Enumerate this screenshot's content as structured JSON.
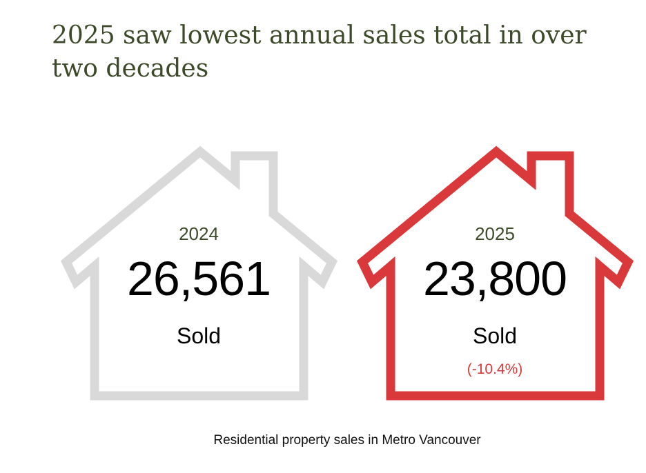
{
  "chart_data": {
    "type": "table",
    "title": "2025 saw lowest annual sales total in over two decades",
    "caption": "Residential property sales in Metro Vancouver",
    "unit_label": "Sold",
    "items": [
      {
        "year": "2024",
        "value": "26,561",
        "numeric_value": 26561,
        "label": "Sold",
        "change": "",
        "color": "#d9d9d9"
      },
      {
        "year": "2025",
        "value": "23,800",
        "numeric_value": 23800,
        "label": "Sold",
        "change": "(-10.4%)",
        "color": "#d9393b"
      }
    ]
  },
  "colors": {
    "title": "#3c4a2a",
    "year": "#3c4a2a",
    "change": "#d9393b"
  }
}
